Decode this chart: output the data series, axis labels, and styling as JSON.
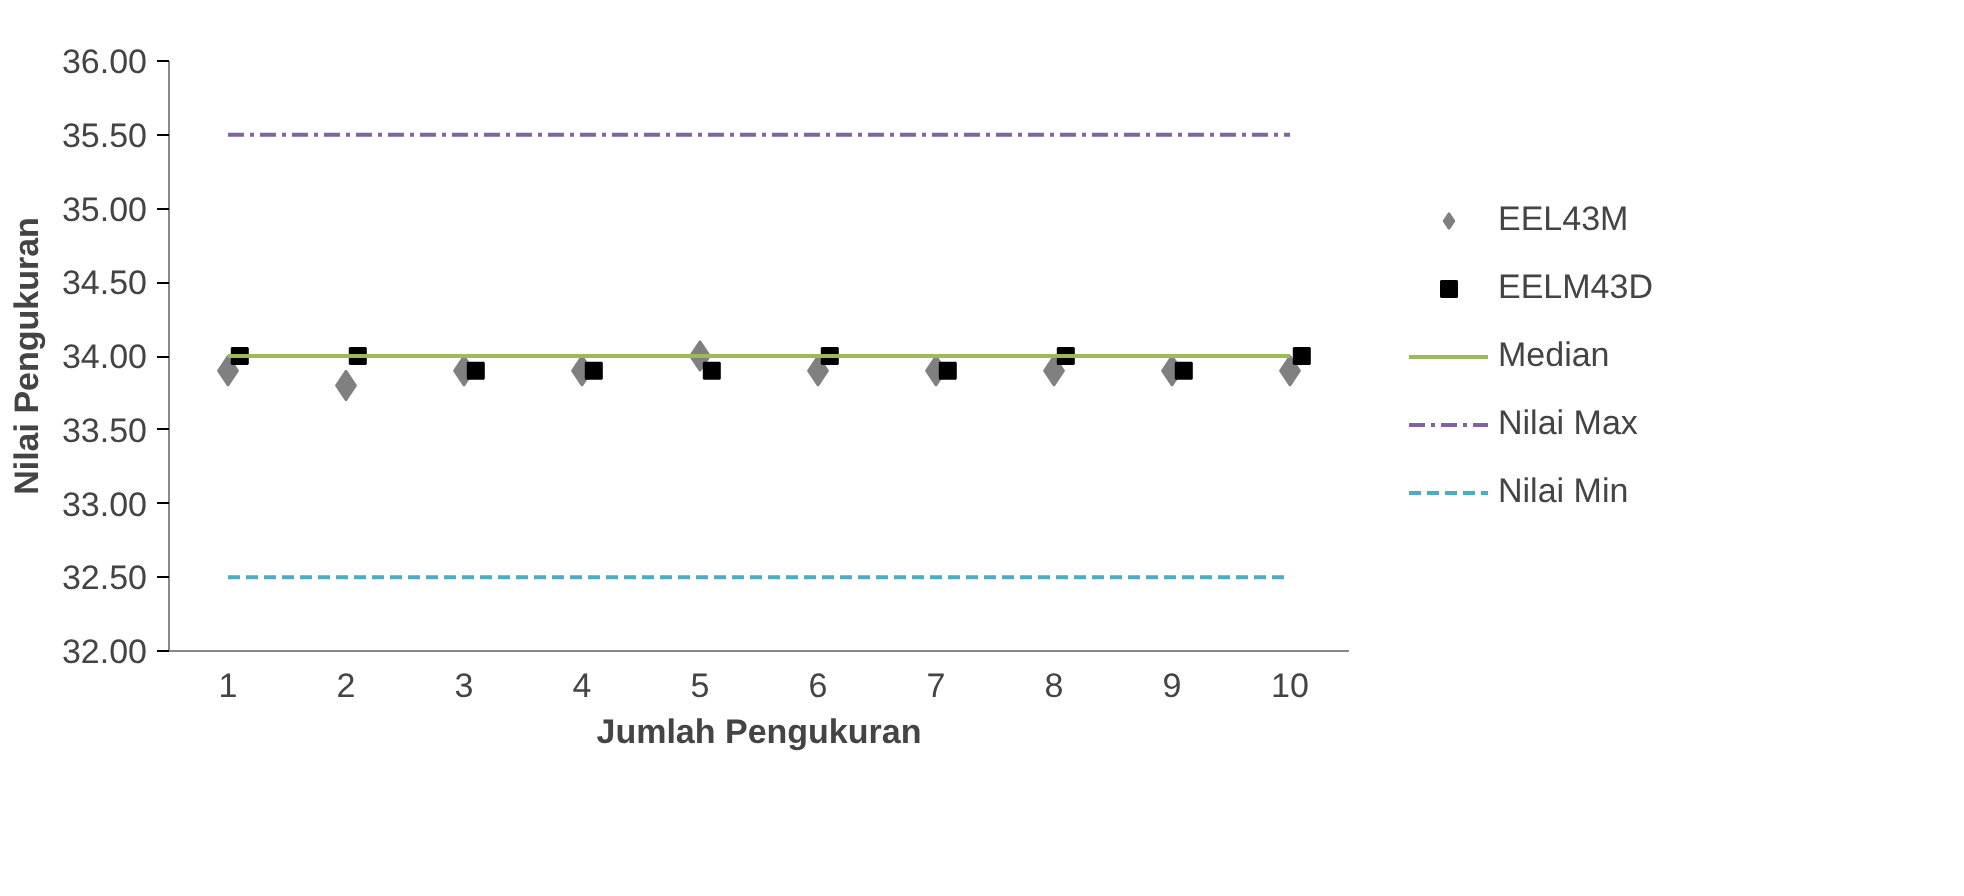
{
  "chart_data": {
    "type": "scatter",
    "xlabel": "Jumlah Pengukuran",
    "ylabel": "Nilai Pengukuran",
    "categories": [
      "1",
      "2",
      "3",
      "4",
      "5",
      "6",
      "7",
      "8",
      "9",
      "10"
    ],
    "ylim": [
      32,
      36
    ],
    "yticks": [
      {
        "value": 32,
        "label": "32.00"
      },
      {
        "value": 32.5,
        "label": "32.50"
      },
      {
        "value": 33,
        "label": "33.00"
      },
      {
        "value": 33.5,
        "label": "33.50"
      },
      {
        "value": 34,
        "label": "34.00"
      },
      {
        "value": 34.5,
        "label": "34.50"
      },
      {
        "value": 35,
        "label": "35.00"
      },
      {
        "value": 35.5,
        "label": "35.50"
      },
      {
        "value": 36,
        "label": "36.00"
      }
    ],
    "grid": false,
    "legend": "right",
    "series": [
      {
        "name": "EEL43M",
        "type": "scatter",
        "marker": "diamond",
        "color": "#808080",
        "values": [
          33.9,
          33.8,
          33.9,
          33.9,
          34.0,
          33.9,
          33.9,
          33.9,
          33.9,
          33.9
        ]
      },
      {
        "name": "EELM43D",
        "type": "scatter",
        "marker": "square",
        "color": "#000000",
        "values": [
          34.0,
          34.0,
          33.9,
          33.9,
          33.9,
          34.0,
          33.9,
          34.0,
          33.9,
          34.0
        ]
      },
      {
        "name": "Median",
        "type": "line",
        "line_style": "solid",
        "color": "#9bbb59",
        "values": [
          34,
          34,
          34,
          34,
          34,
          34,
          34,
          34,
          34,
          34
        ]
      },
      {
        "name": "Nilai Max",
        "type": "line",
        "line_style": "dashdot",
        "color": "#8064a2",
        "values": [
          35.5,
          35.5,
          35.5,
          35.5,
          35.5,
          35.5,
          35.5,
          35.5,
          35.5,
          35.5
        ]
      },
      {
        "name": "Nilai Min",
        "type": "line",
        "line_style": "dashed",
        "color": "#4bacc6",
        "values": [
          32.5,
          32.5,
          32.5,
          32.5,
          32.5,
          32.5,
          32.5,
          32.5,
          32.5,
          32.5
        ]
      }
    ]
  }
}
